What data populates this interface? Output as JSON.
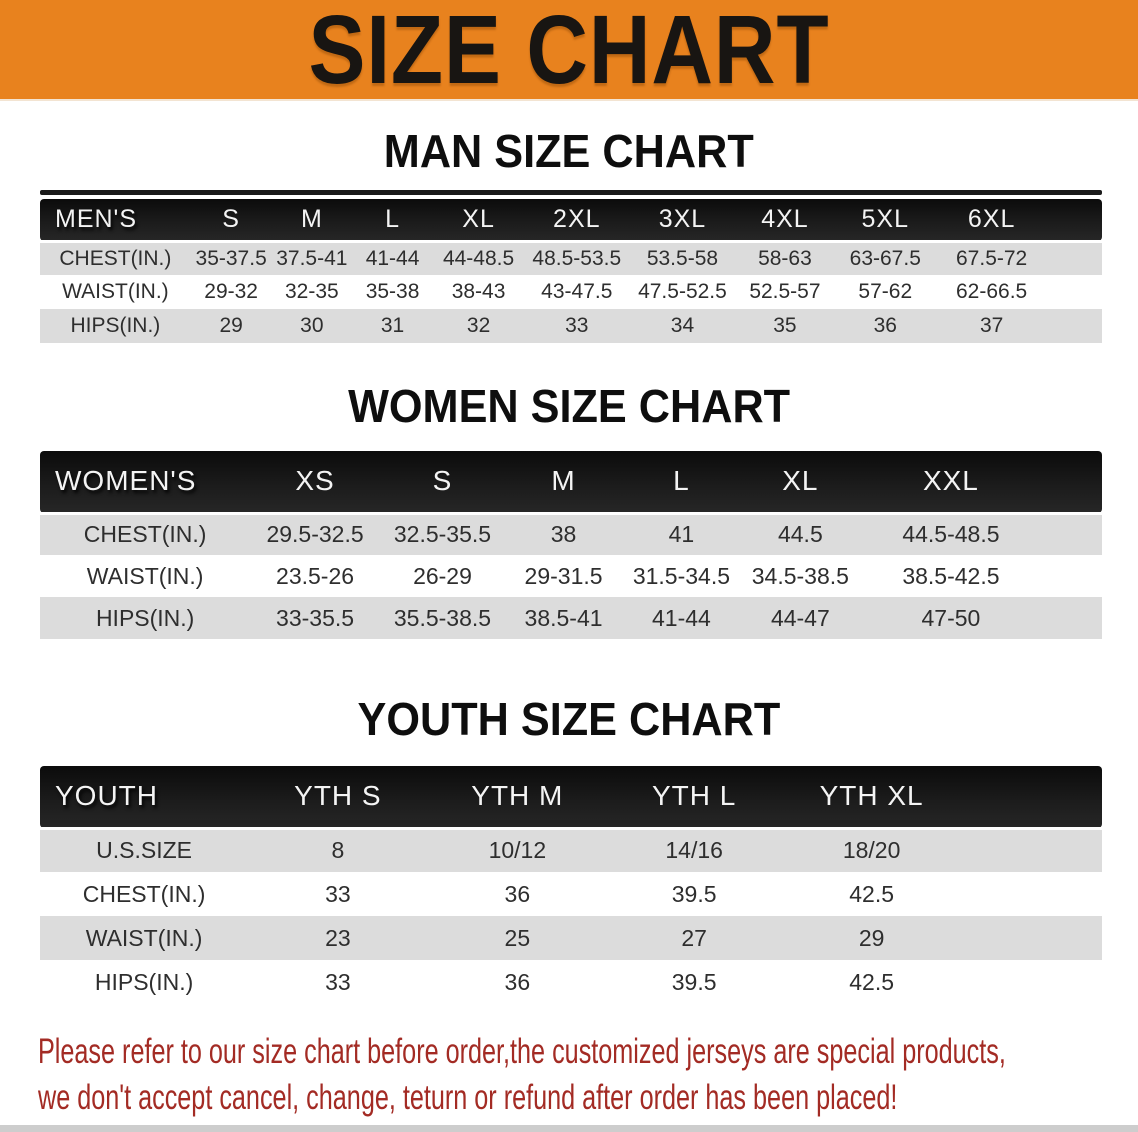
{
  "banner": {
    "title": "SIZE CHART"
  },
  "sections": [
    {
      "heading": "MAN SIZE CHART",
      "table": {
        "header_label": "MEN'S",
        "columns": [
          "S",
          "M",
          "L",
          "XL",
          "2XL",
          "3XL",
          "4XL",
          "5XL",
          "6XL"
        ],
        "rows": [
          {
            "label": "CHEST(IN.)",
            "values": [
              "35-37.5",
              "37.5-41",
              "41-44",
              "44-48.5",
              "48.5-53.5",
              "53.5-58",
              "58-63",
              "63-67.5",
              "67.5-72"
            ]
          },
          {
            "label": "WAIST(IN.)",
            "values": [
              "29-32",
              "32-35",
              "35-38",
              "38-43",
              "43-47.5",
              "47.5-52.5",
              "52.5-57",
              "57-62",
              "62-66.5"
            ]
          },
          {
            "label": "HIPS(IN.)",
            "values": [
              "29",
              "30",
              "31",
              "32",
              "33",
              "34",
              "35",
              "36",
              "37"
            ]
          }
        ]
      }
    },
    {
      "heading": "WOMEN SIZE CHART",
      "table": {
        "header_label": "WOMEN'S",
        "columns": [
          "XS",
          "S",
          "M",
          "L",
          "XL",
          "XXL"
        ],
        "rows": [
          {
            "label": "CHEST(IN.)",
            "values": [
              "29.5-32.5",
              "32.5-35.5",
              "38",
              "41",
              "44.5",
              "44.5-48.5"
            ]
          },
          {
            "label": "WAIST(IN.)",
            "values": [
              "23.5-26",
              "26-29",
              "29-31.5",
              "31.5-34.5",
              "34.5-38.5",
              "38.5-42.5"
            ]
          },
          {
            "label": "HIPS(IN.)",
            "values": [
              "33-35.5",
              "35.5-38.5",
              "38.5-41",
              "41-44",
              "44-47",
              "47-50"
            ]
          }
        ]
      }
    },
    {
      "heading": "YOUTH SIZE CHART",
      "table": {
        "header_label": "YOUTH",
        "columns": [
          "YTH S",
          "YTH M",
          "YTH L",
          "YTH XL"
        ],
        "rows": [
          {
            "label": "U.S.SIZE",
            "values": [
              "8",
              "10/12",
              "14/16",
              "18/20"
            ]
          },
          {
            "label": "CHEST(IN.)",
            "values": [
              "33",
              "36",
              "39.5",
              "42.5"
            ]
          },
          {
            "label": "WAIST(IN.)",
            "values": [
              "23",
              "25",
              "27",
              "29"
            ]
          },
          {
            "label": "HIPS(IN.)",
            "values": [
              "33",
              "36",
              "39.5",
              "42.5"
            ]
          }
        ]
      }
    }
  ],
  "disclaimer": {
    "line1": "Please refer to our size chart before order,the customized jerseys are special products,",
    "line2": "we don't accept cancel, change, teturn or refund after order has been placed!"
  },
  "colors": {
    "banner_orange": "#e8821e",
    "table_header_black": "#161616",
    "row_stripe_gray": "#dcdcdc",
    "disclaimer_red": "#a32b24",
    "footer_strip_gray": "#cdcdcd"
  }
}
